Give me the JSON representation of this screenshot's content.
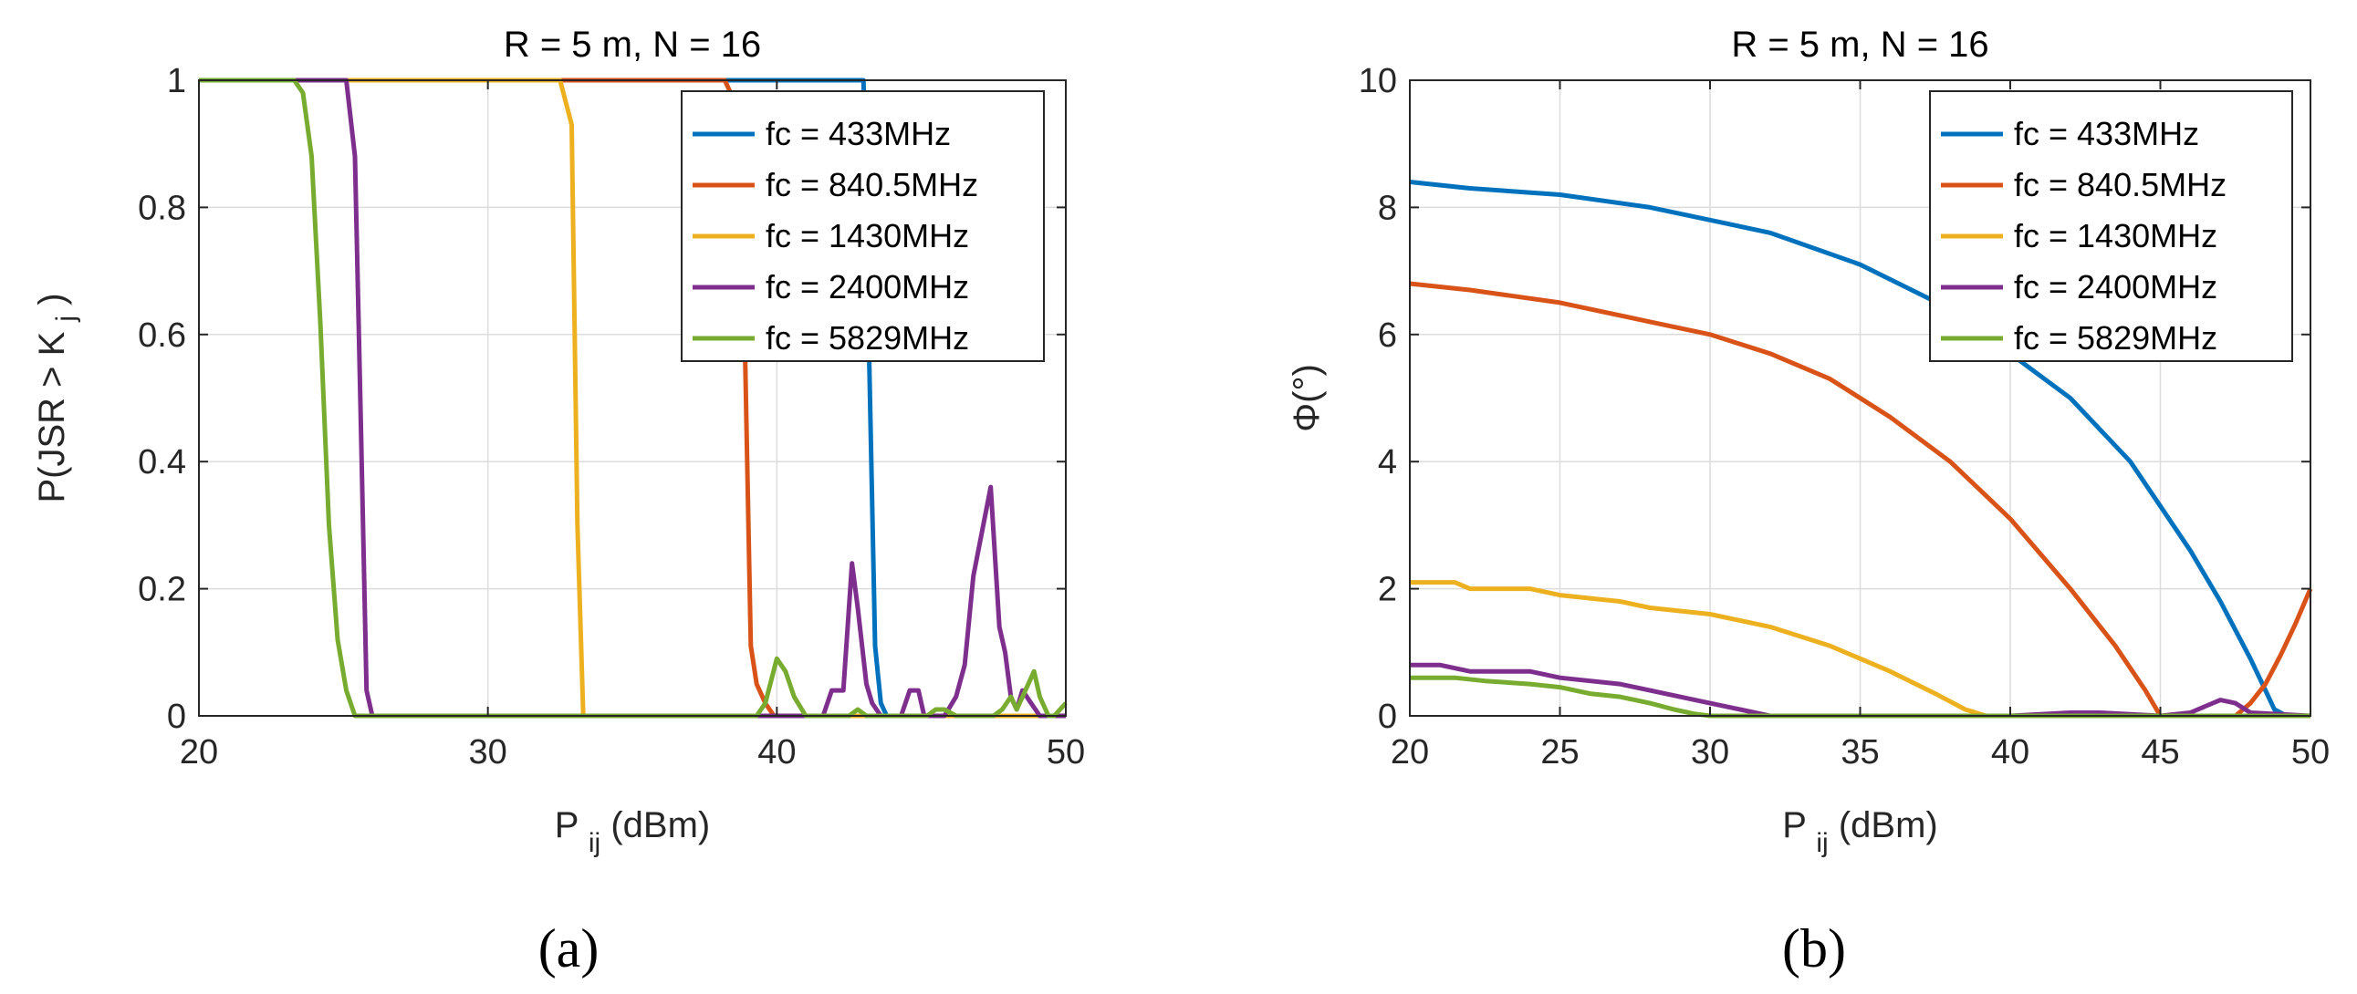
{
  "captions": [
    "(a)",
    "(b)"
  ],
  "chart_data": [
    {
      "type": "line",
      "title": "R = 5 m, N = 16",
      "xlabel_main": "P",
      "xlabel_sub": "ij",
      "xlabel_rest": " (dBm)",
      "ylabel_main": "P(JSR > K",
      "ylabel_sub": "j",
      "ylabel_rest": ")",
      "xlim": [
        20,
        50
      ],
      "ylim": [
        0,
        1
      ],
      "xticks": [
        20,
        30,
        40,
        50
      ],
      "yticks": [
        0,
        0.2,
        0.4,
        0.6,
        0.8,
        1
      ],
      "ytick_labels": [
        "0",
        "0.2",
        "0.4",
        "0.6",
        "0.8",
        "1"
      ],
      "xtick_labels": [
        "20",
        "30",
        "40",
        "50"
      ],
      "legend_position": "top-right",
      "series": [
        {
          "name": "fc = 433MHz",
          "color": "#0072BD",
          "x": [
            20,
            42.6,
            43.0,
            43.2,
            43.4,
            43.6,
            43.8,
            44,
            50
          ],
          "y": [
            1,
            1,
            1,
            0.55,
            0.11,
            0.02,
            0,
            0,
            0
          ]
        },
        {
          "name": "fc = 840.5MHz",
          "color": "#D95319",
          "x": [
            20,
            38.2,
            38.6,
            38.9,
            39.1,
            39.3,
            39.6,
            39.9,
            40.2,
            50
          ],
          "y": [
            1,
            1,
            0.96,
            0.57,
            0.11,
            0.05,
            0.02,
            0,
            0,
            0
          ]
        },
        {
          "name": "fc = 1430MHz",
          "color": "#EDB120",
          "x": [
            20,
            32.5,
            32.9,
            33.1,
            33.3,
            50
          ],
          "y": [
            1,
            1,
            0.93,
            0.3,
            0,
            0
          ]
        },
        {
          "name": "fc = 2400MHz",
          "color": "#7E2F8E",
          "x": [
            20,
            25.1,
            25.4,
            25.6,
            25.8,
            26,
            41.6,
            41.9,
            42.3,
            42.6,
            42.8,
            43.1,
            43.3,
            43.6,
            44.3,
            44.6,
            44.9,
            45.1,
            45.4,
            45.8,
            46.2,
            46.5,
            46.8,
            47.1,
            47.4,
            47.7,
            47.9,
            48.1,
            48.3,
            48.5,
            48.8,
            49.1,
            49.4,
            50
          ],
          "y": [
            1,
            1,
            0.88,
            0.47,
            0.04,
            0,
            0,
            0.04,
            0.04,
            0.24,
            0.17,
            0.05,
            0.02,
            0,
            0,
            0.04,
            0.04,
            0,
            0,
            0,
            0.03,
            0.08,
            0.22,
            0.29,
            0.36,
            0.14,
            0.1,
            0.03,
            0.01,
            0.04,
            0.02,
            0,
            0,
            0
          ]
        },
        {
          "name": "fc = 5829MHz",
          "color": "#77AC30",
          "x": [
            20,
            23.3,
            23.6,
            23.9,
            24.2,
            24.5,
            24.8,
            25.1,
            25.4,
            39.3,
            39.6,
            40.0,
            40.3,
            40.6,
            41.0,
            41.3,
            42.5,
            42.8,
            43.1,
            45.2,
            45.5,
            45.8,
            46.2,
            46.8,
            47.5,
            47.8,
            48.1,
            48.3,
            48.6,
            48.9,
            49.1,
            49.4,
            49.6,
            50
          ],
          "y": [
            1,
            1,
            0.98,
            0.88,
            0.62,
            0.3,
            0.12,
            0.04,
            0,
            0,
            0.02,
            0.09,
            0.07,
            0.03,
            0,
            0,
            0,
            0.01,
            0,
            0,
            0.01,
            0.01,
            0,
            0,
            0,
            0.01,
            0.03,
            0.01,
            0.04,
            0.07,
            0.03,
            0,
            0,
            0.02
          ]
        }
      ]
    },
    {
      "type": "line",
      "title": "R = 5 m, N = 16",
      "xlabel_main": "P",
      "xlabel_sub": "ij",
      "xlabel_rest": " (dBm)",
      "ylabel_main": "Φ(°)",
      "xlim": [
        20,
        50
      ],
      "ylim": [
        0,
        10
      ],
      "xticks": [
        20,
        25,
        30,
        35,
        40,
        45,
        50
      ],
      "yticks": [
        0,
        2,
        4,
        6,
        8,
        10
      ],
      "ytick_labels": [
        "0",
        "2",
        "4",
        "6",
        "8",
        "10"
      ],
      "xtick_labels": [
        "20",
        "25",
        "30",
        "35",
        "40",
        "45",
        "50"
      ],
      "legend_position": "top-right",
      "series": [
        {
          "name": "fc = 433MHz",
          "color": "#0072BD",
          "x": [
            20,
            22,
            25,
            28,
            30,
            32,
            35,
            38,
            40,
            42,
            44,
            46,
            47,
            48,
            48.5,
            48.8,
            49.2,
            50
          ],
          "y": [
            8.4,
            8.3,
            8.2,
            8.0,
            7.8,
            7.6,
            7.1,
            6.4,
            5.7,
            5.0,
            4.0,
            2.6,
            1.8,
            0.9,
            0.4,
            0.1,
            0,
            0
          ]
        },
        {
          "name": "fc = 840.5MHz",
          "color": "#D95319",
          "x": [
            20,
            22,
            25,
            28,
            30,
            32,
            34,
            36,
            38,
            40,
            42,
            43.5,
            44.5,
            45,
            46,
            47,
            47.5,
            48,
            48.5,
            49,
            49.5,
            50
          ],
          "y": [
            6.8,
            6.7,
            6.5,
            6.2,
            6.0,
            5.7,
            5.3,
            4.7,
            4.0,
            3.1,
            2.0,
            1.1,
            0.4,
            0,
            0,
            0,
            0,
            0.2,
            0.5,
            0.95,
            1.45,
            2.0
          ]
        },
        {
          "name": "fc = 1430MHz",
          "color": "#EDB120",
          "x": [
            20,
            21.5,
            22,
            24,
            25,
            27,
            28,
            30,
            32,
            34,
            36,
            37.5,
            38.5,
            39.2,
            40,
            50
          ],
          "y": [
            2.1,
            2.1,
            2.0,
            2.0,
            1.9,
            1.8,
            1.7,
            1.6,
            1.4,
            1.1,
            0.7,
            0.35,
            0.1,
            0,
            0,
            0
          ]
        },
        {
          "name": "fc = 2400MHz",
          "color": "#7E2F8E",
          "x": [
            20,
            21,
            22,
            24,
            25,
            27,
            28,
            29,
            30,
            31,
            32,
            40,
            42,
            43,
            45,
            46,
            46.5,
            47,
            47.5,
            48,
            50
          ],
          "y": [
            0.8,
            0.8,
            0.7,
            0.7,
            0.6,
            0.5,
            0.4,
            0.3,
            0.2,
            0.1,
            0,
            0,
            0.05,
            0.05,
            0,
            0.05,
            0.15,
            0.25,
            0.2,
            0.05,
            0
          ]
        },
        {
          "name": "fc = 5829MHz",
          "color": "#77AC30",
          "x": [
            20,
            21.5,
            22.5,
            24,
            25,
            26,
            27,
            28,
            28.8,
            29.5,
            30,
            50
          ],
          "y": [
            0.6,
            0.6,
            0.55,
            0.5,
            0.45,
            0.35,
            0.3,
            0.2,
            0.1,
            0.03,
            0,
            0
          ]
        }
      ]
    }
  ]
}
